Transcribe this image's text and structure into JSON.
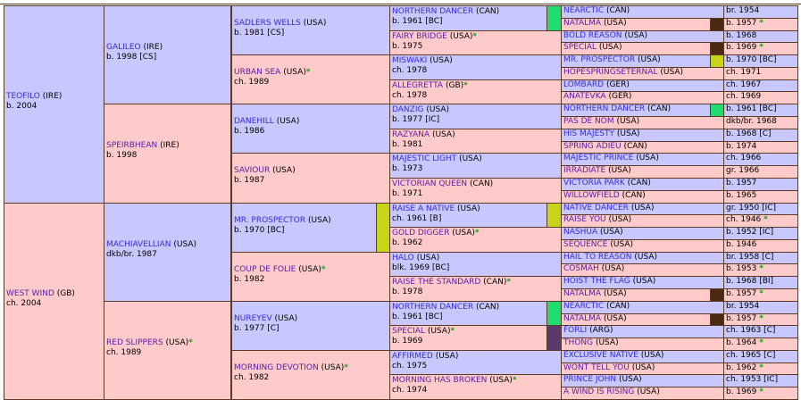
{
  "gen1": [
    {
      "name": "TEOFILO",
      "country": "(IRE)",
      "info": "b. 2004",
      "star": false,
      "sex": "m"
    },
    {
      "name": "WEST WIND",
      "country": "(GB)",
      "info": "ch. 2004",
      "star": false,
      "sex": "f"
    }
  ],
  "gen2": [
    {
      "name": "GALILEO",
      "country": "(IRE)",
      "info": "b. 1998 [CS]",
      "star": false,
      "sex": "m"
    },
    {
      "name": "SPEIRBHEAN",
      "country": "(IRE)",
      "info": "b. 1998",
      "star": false,
      "sex": "f"
    },
    {
      "name": "MACHIAVELLIAN",
      "country": "(USA)",
      "info": "dkb/br. 1987",
      "star": false,
      "sex": "m"
    },
    {
      "name": "RED SLIPPERS",
      "country": "(USA)",
      "info": "ch. 1989",
      "star": true,
      "sex": "f"
    }
  ],
  "gen3": [
    {
      "name": "SADLERS WELLS",
      "country": "(USA)",
      "info": "b. 1981 [CS]",
      "star": false,
      "sex": "m"
    },
    {
      "name": "URBAN SEA",
      "country": "(USA)",
      "info": "ch. 1989",
      "star": true,
      "sex": "f"
    },
    {
      "name": "DANEHILL",
      "country": "(USA)",
      "info": "b. 1986",
      "star": false,
      "sex": "m"
    },
    {
      "name": "SAVIOUR",
      "country": "(USA)",
      "info": "b. 1987",
      "star": false,
      "sex": "f"
    },
    {
      "name": "MR. PROSPECTOR",
      "country": "(USA)",
      "info": "b. 1970 [BC]",
      "star": false,
      "sex": "m"
    },
    {
      "name": "COUP DE FOLIE",
      "country": "(USA)",
      "info": "b. 1982",
      "star": true,
      "sex": "f"
    },
    {
      "name": "NUREYEV",
      "country": "(USA)",
      "info": "b. 1977 [C]",
      "star": false,
      "sex": "m"
    },
    {
      "name": "MORNING DEVOTION",
      "country": "(USA)",
      "info": "ch. 1982",
      "star": true,
      "sex": "f"
    }
  ],
  "gen4": [
    {
      "name": "NORTHERN DANCER",
      "country": "(CAN)",
      "info": "b. 1961 [BC]",
      "star": false,
      "sex": "m"
    },
    {
      "name": "FAIRY BRIDGE",
      "country": "(USA)",
      "info": "b. 1975",
      "star": true,
      "sex": "f"
    },
    {
      "name": "MISWAKI",
      "country": "(USA)",
      "info": "ch. 1978",
      "star": false,
      "sex": "m"
    },
    {
      "name": "ALLEGRETTA",
      "country": "(GB)",
      "info": "ch. 1978",
      "star": true,
      "sex": "f"
    },
    {
      "name": "DANZIG",
      "country": "(USA)",
      "info": "b. 1977 [IC]",
      "star": false,
      "sex": "m"
    },
    {
      "name": "RAZYANA",
      "country": "(USA)",
      "info": "b. 1981",
      "star": false,
      "sex": "f"
    },
    {
      "name": "MAJESTIC LIGHT",
      "country": "(USA)",
      "info": "b. 1973",
      "star": false,
      "sex": "m"
    },
    {
      "name": "VICTORIAN QUEEN",
      "country": "(CAN)",
      "info": "b. 1971",
      "star": false,
      "sex": "f"
    },
    {
      "name": "RAISE A NATIVE",
      "country": "(USA)",
      "info": "ch. 1961 [B]",
      "star": false,
      "sex": "m"
    },
    {
      "name": "GOLD DIGGER",
      "country": "(USA)",
      "info": "b. 1962",
      "star": true,
      "sex": "f"
    },
    {
      "name": "HALO",
      "country": "(USA)",
      "info": "blk. 1969 [BC]",
      "star": false,
      "sex": "m"
    },
    {
      "name": "RAISE THE STANDARD",
      "country": "(CAN)",
      "info": "b. 1978",
      "star": true,
      "sex": "f"
    },
    {
      "name": "NORTHERN DANCER",
      "country": "(CAN)",
      "info": "b. 1961 [BC]",
      "star": false,
      "sex": "m"
    },
    {
      "name": "SPECIAL",
      "country": "(USA)",
      "info": "b. 1969",
      "star": true,
      "sex": "f"
    },
    {
      "name": "AFFIRMED",
      "country": "(USA)",
      "info": "ch. 1975",
      "star": false,
      "sex": "m"
    },
    {
      "name": "MORNING HAS BROKEN",
      "country": "(USA)",
      "info": "ch. 1974",
      "star": true,
      "sex": "f"
    }
  ],
  "gen5": [
    {
      "name": "NEARCTIC",
      "country": "(CAN)",
      "info": "br. 1954",
      "star": false,
      "sex": "m"
    },
    {
      "name": "NATALMA",
      "country": "(USA)",
      "info": "b. 1957",
      "star": true,
      "sex": "f"
    },
    {
      "name": "BOLD REASON",
      "country": "(USA)",
      "info": "b. 1968",
      "star": false,
      "sex": "m"
    },
    {
      "name": "SPECIAL",
      "country": "(USA)",
      "info": "b. 1969",
      "star": true,
      "sex": "f"
    },
    {
      "name": "MR. PROSPECTOR",
      "country": "(USA)",
      "info": "b. 1970 [BC]",
      "star": false,
      "sex": "m"
    },
    {
      "name": "HOPESPRINGSETERNAL",
      "country": "(USA)",
      "info": "ch. 1971",
      "star": false,
      "sex": "f"
    },
    {
      "name": "LOMBARD",
      "country": "(GER)",
      "info": "ch. 1967",
      "star": false,
      "sex": "m"
    },
    {
      "name": "ANATEVKA",
      "country": "(GER)",
      "info": "ch. 1969",
      "star": false,
      "sex": "f"
    },
    {
      "name": "NORTHERN DANCER",
      "country": "(CAN)",
      "info": "b. 1961 [BC]",
      "star": false,
      "sex": "m"
    },
    {
      "name": "PAS DE NOM",
      "country": "(USA)",
      "info": "dkb/br. 1968",
      "star": false,
      "sex": "f"
    },
    {
      "name": "HIS MAJESTY",
      "country": "(USA)",
      "info": "b. 1968 [C]",
      "star": false,
      "sex": "m"
    },
    {
      "name": "SPRING ADIEU",
      "country": "(CAN)",
      "info": "b. 1974",
      "star": false,
      "sex": "f"
    },
    {
      "name": "MAJESTIC PRINCE",
      "country": "(USA)",
      "info": "ch. 1966",
      "star": false,
      "sex": "m"
    },
    {
      "name": "IRRADIATE",
      "country": "(USA)",
      "info": "gr. 1966",
      "star": false,
      "sex": "f"
    },
    {
      "name": "VICTORIA PARK",
      "country": "(CAN)",
      "info": "b. 1957",
      "star": false,
      "sex": "m"
    },
    {
      "name": "WILLOWFIELD",
      "country": "(CAN)",
      "info": "b. 1965",
      "star": false,
      "sex": "f"
    },
    {
      "name": "NATIVE DANCER",
      "country": "(USA)",
      "info": "gr. 1950 [IC]",
      "star": false,
      "sex": "m"
    },
    {
      "name": "RAISE YOU",
      "country": "(USA)",
      "info": "ch. 1946",
      "star": true,
      "sex": "f"
    },
    {
      "name": "NASHUA",
      "country": "(USA)",
      "info": "b. 1952 [IC]",
      "star": false,
      "sex": "m"
    },
    {
      "name": "SEQUENCE",
      "country": "(USA)",
      "info": "b. 1946",
      "star": false,
      "sex": "f"
    },
    {
      "name": "HAIL TO REASON",
      "country": "(USA)",
      "info": "br. 1958 [C]",
      "star": false,
      "sex": "m"
    },
    {
      "name": "COSMAH",
      "country": "(USA)",
      "info": "b. 1953",
      "star": true,
      "sex": "f"
    },
    {
      "name": "HOIST THE FLAG",
      "country": "(USA)",
      "info": "b. 1968 [BI]",
      "star": false,
      "sex": "m"
    },
    {
      "name": "NATALMA",
      "country": "(USA)",
      "info": "b. 1957",
      "star": true,
      "sex": "f"
    },
    {
      "name": "NEARCTIC",
      "country": "(CAN)",
      "info": "br. 1954",
      "star": false,
      "sex": "m"
    },
    {
      "name": "NATALMA",
      "country": "(USA)",
      "info": "b. 1957",
      "star": true,
      "sex": "f"
    },
    {
      "name": "FORLI",
      "country": "(ARG)",
      "info": "ch. 1963 [C]",
      "star": false,
      "sex": "m"
    },
    {
      "name": "THONG",
      "country": "(USA)",
      "info": "b. 1964",
      "star": true,
      "sex": "f"
    },
    {
      "name": "EXCLUSIVE NATIVE",
      "country": "(USA)",
      "info": "ch. 1965 [C]",
      "star": false,
      "sex": "m"
    },
    {
      "name": "WONT TELL YOU",
      "country": "(USA)",
      "info": "b. 1962",
      "star": true,
      "sex": "f"
    },
    {
      "name": "PRINCE JOHN",
      "country": "(USA)",
      "info": "ch. 1953 [IC]",
      "star": false,
      "sex": "m"
    },
    {
      "name": "A WIND IS RISING",
      "country": "(USA)",
      "info": "b. 1969",
      "star": true,
      "sex": "f"
    }
  ],
  "star_glyph": "*",
  "swatches": {
    "gen4": [
      {
        "row": 0,
        "color": "#22dd6e"
      },
      {
        "row": 8,
        "color": "#c8d41a"
      },
      {
        "row": 12,
        "color": "#22dd6e"
      },
      {
        "row": 13,
        "color": "#5a3a6a"
      }
    ],
    "gen3": [
      {
        "row": 4,
        "color": "#c8d41a"
      }
    ],
    "gen5": [
      {
        "row": 1,
        "color": "#4a2a10"
      },
      {
        "row": 3,
        "color": "#4a2a10"
      },
      {
        "row": 4,
        "color": "#c8d41a"
      },
      {
        "row": 8,
        "color": "#22dd6e"
      },
      {
        "row": 23,
        "color": "#4a2a10"
      },
      {
        "row": 25,
        "color": "#4a2a10"
      }
    ]
  }
}
